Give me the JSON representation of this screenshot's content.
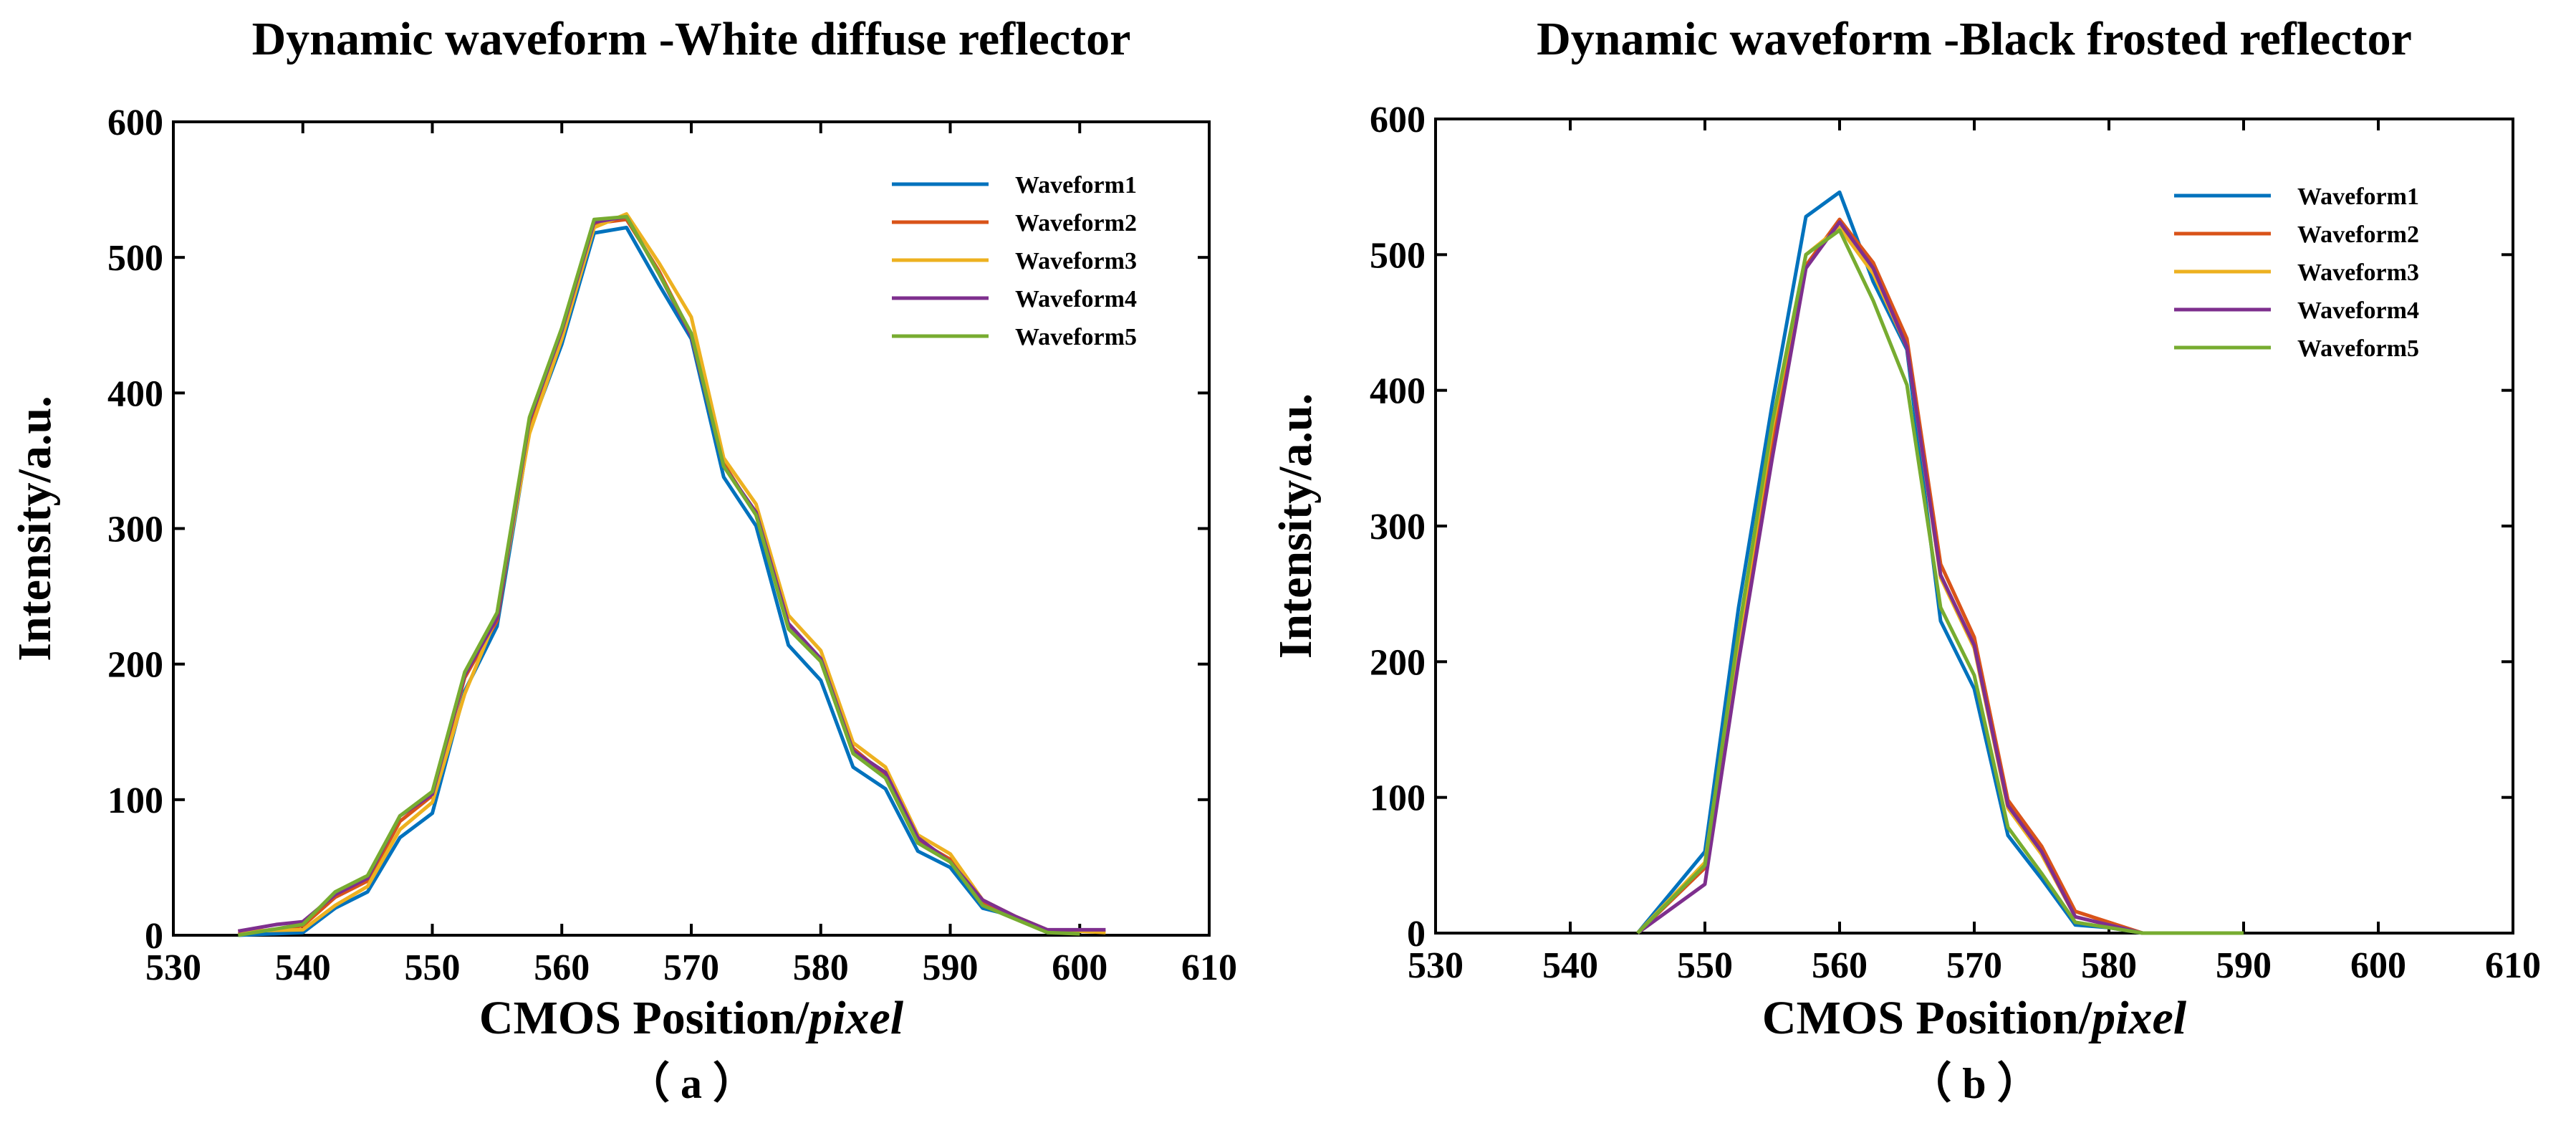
{
  "colors": [
    "#0072BD",
    "#D95319",
    "#EDB120",
    "#7E2F8E",
    "#77AC30"
  ],
  "chart_data": [
    {
      "type": "line",
      "title": "Dynamic waveform -White diffuse reflector",
      "xlabel_main": "CMOS Position/",
      "xlabel_italic": "pixel",
      "ylabel": "Intensity/a.u.",
      "sublabel": "（ a ）",
      "xlim": [
        530,
        610
      ],
      "ylim": [
        0,
        600
      ],
      "xticks": [
        530,
        540,
        550,
        560,
        570,
        580,
        590,
        600,
        610
      ],
      "yticks": [
        0,
        100,
        200,
        300,
        400,
        500,
        600
      ],
      "legend_position": "top-right",
      "series": [
        {
          "name": "Waveform1",
          "x": [
            535,
            540,
            542.5,
            545,
            547.5,
            550,
            552.5,
            555,
            557.5,
            560,
            562.5,
            565,
            567.5,
            570,
            572.5,
            575,
            577.5,
            580,
            582.5,
            585,
            587.5,
            590,
            592.5,
            595,
            597.5,
            600
          ],
          "y": [
            0,
            2,
            20,
            32,
            72,
            90,
            180,
            228,
            372,
            436,
            518,
            522,
            480,
            440,
            338,
            302,
            214,
            188,
            124,
            108,
            62,
            50,
            20,
            14,
            2,
            2
          ]
        },
        {
          "name": "Waveform2",
          "x": [
            535,
            540,
            542.5,
            545,
            547.5,
            550,
            552.5,
            555,
            557.5,
            560,
            562.5,
            565,
            567.5,
            570,
            572.5,
            575,
            577.5,
            580,
            582.5,
            585,
            587.5,
            590,
            592.5,
            595,
            597.5,
            600
          ],
          "y": [
            1,
            7,
            28,
            40,
            84,
            103,
            190,
            232,
            378,
            443,
            525,
            528,
            490,
            443,
            348,
            310,
            228,
            202,
            138,
            118,
            70,
            56,
            24,
            14,
            3,
            2
          ]
        },
        {
          "name": "Waveform3",
          "x": [
            535,
            540,
            542.5,
            545,
            547.5,
            550,
            552.5,
            555,
            557.5,
            560,
            562.5,
            565,
            567.5,
            570,
            572.5,
            575,
            577.5,
            580,
            582.5,
            585,
            587.5,
            590,
            592.5,
            595,
            597.5,
            602
          ],
          "y": [
            3,
            4,
            22,
            36,
            78,
            98,
            178,
            236,
            370,
            440,
            522,
            532,
            496,
            456,
            352,
            318,
            236,
            210,
            142,
            124,
            74,
            60,
            26,
            14,
            4,
            2
          ]
        },
        {
          "name": "Waveform4",
          "x": [
            535,
            538,
            540,
            542.5,
            545,
            547.5,
            550,
            552.5,
            555,
            557.5,
            560,
            562.5,
            565,
            567.5,
            570,
            572.5,
            575,
            577.5,
            580,
            582.5,
            585,
            587.5,
            590,
            592.5,
            595,
            597.5,
            602
          ],
          "y": [
            3,
            8,
            10,
            30,
            42,
            88,
            104,
            192,
            234,
            380,
            446,
            526,
            530,
            488,
            442,
            346,
            312,
            230,
            204,
            136,
            120,
            72,
            54,
            26,
            14,
            4,
            4
          ]
        },
        {
          "name": "Waveform5",
          "x": [
            535,
            540,
            542.5,
            545,
            547.5,
            550,
            552.5,
            555,
            557.5,
            560,
            562.5,
            565,
            567.5,
            570,
            572.5,
            575,
            577.5,
            580,
            582.5,
            585,
            587.5,
            590,
            592.5,
            595,
            597.5,
            600
          ],
          "y": [
            0,
            8,
            32,
            44,
            88,
            106,
            194,
            238,
            382,
            448,
            528,
            530,
            488,
            444,
            346,
            310,
            226,
            202,
            134,
            116,
            68,
            54,
            22,
            12,
            2,
            1
          ]
        }
      ]
    },
    {
      "type": "line",
      "title": "Dynamic waveform -Black frosted reflector",
      "xlabel_main": "CMOS Position/",
      "xlabel_italic": "pixel",
      "ylabel": "Intensity/a.u.",
      "sublabel": "（ b ）",
      "xlim": [
        530,
        610
      ],
      "ylim": [
        0,
        600
      ],
      "xticks": [
        530,
        540,
        550,
        560,
        570,
        580,
        590,
        600,
        610
      ],
      "yticks": [
        0,
        100,
        200,
        300,
        400,
        500,
        600
      ],
      "legend_position": "top-right",
      "series": [
        {
          "name": "Waveform1",
          "x": [
            545,
            550,
            552.5,
            555,
            557.5,
            560,
            562.5,
            565,
            567.5,
            570,
            572.5,
            575,
            577.5,
            580,
            582.5,
            585,
            590
          ],
          "y": [
            0,
            60,
            240,
            390,
            528,
            546,
            480,
            430,
            230,
            180,
            72,
            40,
            6,
            4,
            0,
            0,
            0
          ]
        },
        {
          "name": "Waveform2",
          "x": [
            545,
            550,
            552.5,
            555,
            557.5,
            560,
            562.5,
            565,
            567.5,
            570,
            572.5,
            575,
            577.5,
            580,
            582.5,
            585,
            590
          ],
          "y": [
            0,
            48,
            210,
            360,
            492,
            526,
            494,
            438,
            272,
            218,
            98,
            64,
            16,
            8,
            0,
            0,
            0
          ]
        },
        {
          "name": "Waveform3",
          "x": [
            545,
            550,
            552.5,
            555,
            557.5,
            560,
            562.5,
            565,
            567.5,
            570,
            572.5,
            575,
            577.5,
            580,
            582.5,
            585,
            590
          ],
          "y": [
            0,
            52,
            216,
            372,
            500,
            520,
            486,
            432,
            262,
            210,
            92,
            58,
            12,
            6,
            0,
            0,
            0
          ]
        },
        {
          "name": "Waveform4",
          "x": [
            545,
            550,
            552.5,
            555,
            557.5,
            560,
            562.5,
            565,
            567.5,
            570,
            572.5,
            575,
            577.5,
            580,
            582.5,
            585,
            590
          ],
          "y": [
            0,
            36,
            200,
            350,
            490,
            524,
            490,
            432,
            264,
            212,
            94,
            60,
            12,
            6,
            0,
            0,
            0
          ]
        },
        {
          "name": "Waveform5",
          "x": [
            545,
            550,
            552.5,
            555,
            557.5,
            560,
            562.5,
            565,
            567.5,
            570,
            572.5,
            575,
            577.5,
            580,
            582.5,
            585,
            590
          ],
          "y": [
            0,
            50,
            222,
            376,
            500,
            518,
            466,
            404,
            240,
            190,
            78,
            44,
            8,
            4,
            0,
            0,
            0
          ]
        }
      ]
    }
  ]
}
